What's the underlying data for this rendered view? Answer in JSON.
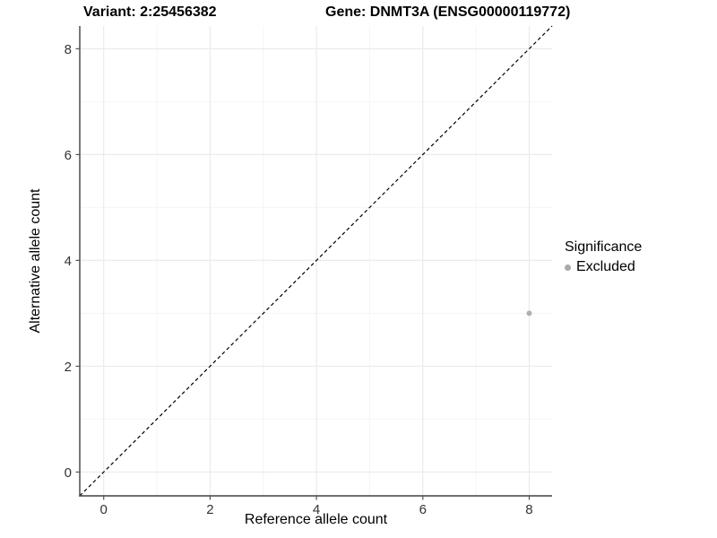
{
  "chart_data": {
    "type": "scatter",
    "title_left": "Variant: 2:25456382",
    "title_right": "Gene: DNMT3A (ENSG00000119772)",
    "xlabel": "Reference allele count",
    "ylabel": "Alternative allele count",
    "xlim": [
      -0.45,
      8.43
    ],
    "ylim": [
      -0.45,
      8.43
    ],
    "xticks": [
      0,
      2,
      4,
      6,
      8
    ],
    "yticks": [
      0,
      2,
      4,
      6,
      8
    ],
    "x_minor_ticks": [
      1,
      3,
      5,
      7
    ],
    "y_minor_ticks": [
      1,
      3,
      5,
      7
    ],
    "grid": true,
    "identity_line": {
      "type": "dashed",
      "slope": 1,
      "intercept": 0,
      "color": "#000000"
    },
    "points": [
      {
        "x": 8,
        "y": 3,
        "series": "Excluded"
      }
    ],
    "series": [
      {
        "name": "Excluded",
        "color": "#b0b0b0"
      }
    ],
    "legend": {
      "title": "Significance",
      "position": "right",
      "items": [
        {
          "label": "Excluded",
          "color": "#a9a9a9"
        }
      ]
    },
    "colors": {
      "background": "#ffffff",
      "grid_major": "#ebebeb",
      "grid_minor": "#f5f5f5",
      "axis_line": "#404040",
      "tick_mark": "#555555",
      "tick_label": "#333333",
      "point": "#b0b0b0"
    }
  }
}
